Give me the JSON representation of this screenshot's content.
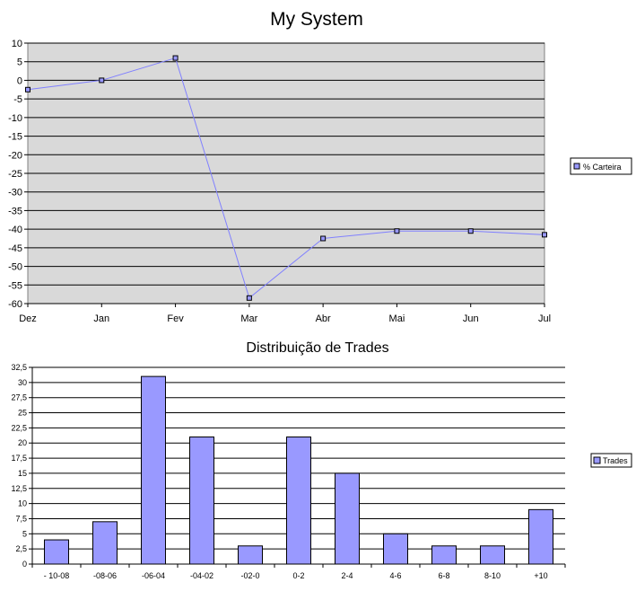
{
  "chart_data": [
    {
      "type": "line",
      "title": "My System",
      "categories": [
        "Dez",
        "Jan",
        "Fev",
        "Mar",
        "Abr",
        "Mai",
        "Jun",
        "Jul"
      ],
      "series": [
        {
          "name": "% Carteira",
          "values": [
            -2.5,
            0,
            6,
            -58.5,
            -42.5,
            -40.5,
            -40.5,
            -41.5
          ]
        }
      ],
      "ylim": [
        -60,
        10
      ],
      "yticks": [
        "10",
        "5",
        "0",
        "-5",
        "-10",
        "-15",
        "-20",
        "-25",
        "-30",
        "-35",
        "-40",
        "-45",
        "-50",
        "-55",
        "-60"
      ],
      "grid": true,
      "plot_background": "#d9d9d9",
      "line_color": "#8080ff",
      "marker_color": "#9999ff",
      "legend": "right"
    },
    {
      "type": "bar",
      "title": "Distribuição de Trades",
      "categories": [
        "- 10-08",
        "-08-06",
        "-06-04",
        "-04-02",
        "-02-0",
        "0-2",
        "2-4",
        "4-6",
        "6-8",
        "8-10",
        "+10"
      ],
      "series": [
        {
          "name": "Trades",
          "values": [
            4,
            7,
            31,
            21,
            3,
            21,
            15,
            5,
            3,
            3,
            9
          ]
        }
      ],
      "ylim": [
        0,
        32.5
      ],
      "yticks": [
        "0",
        "2,5",
        "5",
        "7,5",
        "10",
        "12,5",
        "15",
        "17,5",
        "20",
        "22,5",
        "25",
        "27,5",
        "30",
        "32,5"
      ],
      "grid": true,
      "bar_color": "#9999ff",
      "legend": "right"
    }
  ]
}
